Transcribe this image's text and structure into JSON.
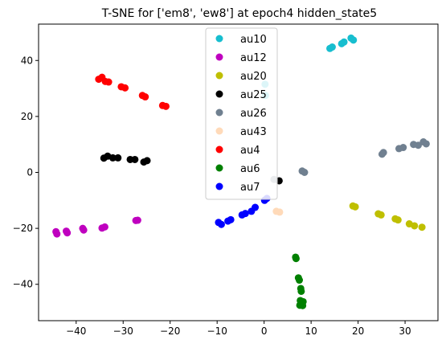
{
  "chart_data": {
    "type": "scatter",
    "title": "T-SNE for ['em8', 'ew8'] at epoch4 hidden_state5",
    "xlabel": "",
    "ylabel": "",
    "xlim": [
      -48,
      37
    ],
    "ylim": [
      -53,
      53
    ],
    "xticks": [
      -40,
      -30,
      -20,
      -10,
      0,
      10,
      20,
      30
    ],
    "yticks": [
      -40,
      -20,
      0,
      20,
      40
    ],
    "xtick_labels": [
      "−40",
      "−30",
      "−20",
      "−10",
      "0",
      "10",
      "20",
      "30"
    ],
    "ytick_labels": [
      "−40",
      "−20",
      "0",
      "20",
      "40"
    ],
    "grid": false,
    "legend_position": "top-center",
    "series": [
      {
        "name": "au10",
        "color": "#17becf",
        "points": [
          [
            14,
            44.3
          ],
          [
            14.5,
            44.8
          ],
          [
            16.5,
            46
          ],
          [
            17,
            46.6
          ],
          [
            18.5,
            48
          ],
          [
            19,
            47.3
          ],
          [
            0.2,
            31.5
          ],
          [
            0.3,
            27.5
          ]
        ]
      },
      {
        "name": "au12",
        "color": "#bf00bf",
        "points": [
          [
            -44.3,
            -21.2
          ],
          [
            -44.1,
            -22
          ],
          [
            -42.1,
            -21
          ],
          [
            -41.9,
            -21.6
          ],
          [
            -38.6,
            -20
          ],
          [
            -38.4,
            -20.6
          ],
          [
            -34.5,
            -19.9
          ],
          [
            -33.9,
            -19.5
          ],
          [
            -27.3,
            -17.2
          ],
          [
            -26.9,
            -17.1
          ]
        ]
      },
      {
        "name": "au20",
        "color": "#bfbf00",
        "points": [
          [
            18.9,
            -12
          ],
          [
            19.4,
            -12.3
          ],
          [
            24.3,
            -14.8
          ],
          [
            24.9,
            -15.2
          ],
          [
            27.9,
            -16.6
          ],
          [
            28.5,
            -17
          ],
          [
            30.9,
            -18.4
          ],
          [
            32,
            -19.1
          ],
          [
            33.6,
            -19.6
          ]
        ]
      },
      {
        "name": "au25",
        "color": "#000000",
        "points": [
          [
            -34.1,
            5.1
          ],
          [
            -33.3,
            5.8
          ],
          [
            -32.2,
            5.2
          ],
          [
            -31.1,
            5.2
          ],
          [
            -28.5,
            4.6
          ],
          [
            -27.5,
            4.6
          ],
          [
            -25.6,
            3.7
          ],
          [
            -24.9,
            4.2
          ],
          [
            3.2,
            -3
          ]
        ]
      },
      {
        "name": "au26",
        "color": "#708090",
        "points": [
          [
            25.1,
            6.5
          ],
          [
            25.4,
            7.1
          ],
          [
            28.7,
            8.5
          ],
          [
            29.6,
            8.9
          ],
          [
            31.8,
            10
          ],
          [
            32.8,
            9.7
          ],
          [
            33.9,
            10.9
          ],
          [
            34.5,
            10.2
          ],
          [
            8.1,
            0.5
          ],
          [
            8.6,
            0
          ],
          [
            2.1,
            -2.5
          ]
        ]
      },
      {
        "name": "au43",
        "color": "#ffdab9",
        "points": [
          [
            2.6,
            -13.9
          ],
          [
            3.3,
            -14.2
          ]
        ]
      },
      {
        "name": "au4",
        "color": "#ff0000",
        "points": [
          [
            -35.2,
            33.3
          ],
          [
            -34.5,
            34
          ],
          [
            -33.8,
            32.5
          ],
          [
            -33.1,
            32.3
          ],
          [
            -30.4,
            30.6
          ],
          [
            -29.6,
            30.2
          ],
          [
            -25.9,
            27.5
          ],
          [
            -25.3,
            27
          ],
          [
            -21.6,
            23.9
          ],
          [
            -20.9,
            23.6
          ]
        ]
      },
      {
        "name": "au6",
        "color": "#008000",
        "points": [
          [
            6.7,
            -30.3
          ],
          [
            6.8,
            -30.8
          ],
          [
            7.3,
            -37.7
          ],
          [
            7.5,
            -38.5
          ],
          [
            7.8,
            -41.5
          ],
          [
            7.9,
            -42.5
          ],
          [
            7.7,
            -45.8
          ],
          [
            8.3,
            -46.2
          ],
          [
            7.6,
            -47.5
          ],
          [
            8.2,
            -47.6
          ]
        ]
      },
      {
        "name": "au7",
        "color": "#0000ff",
        "points": [
          [
            -9.7,
            -17.9
          ],
          [
            -9.1,
            -18.6
          ],
          [
            -7.7,
            -17.4
          ],
          [
            -7.1,
            -16.9
          ],
          [
            -4.7,
            -15.2
          ],
          [
            -4,
            -14.7
          ],
          [
            -2.7,
            -13.9
          ],
          [
            -1.9,
            -12.5
          ],
          [
            0.1,
            -10
          ],
          [
            0.6,
            -9.3
          ]
        ]
      }
    ]
  }
}
